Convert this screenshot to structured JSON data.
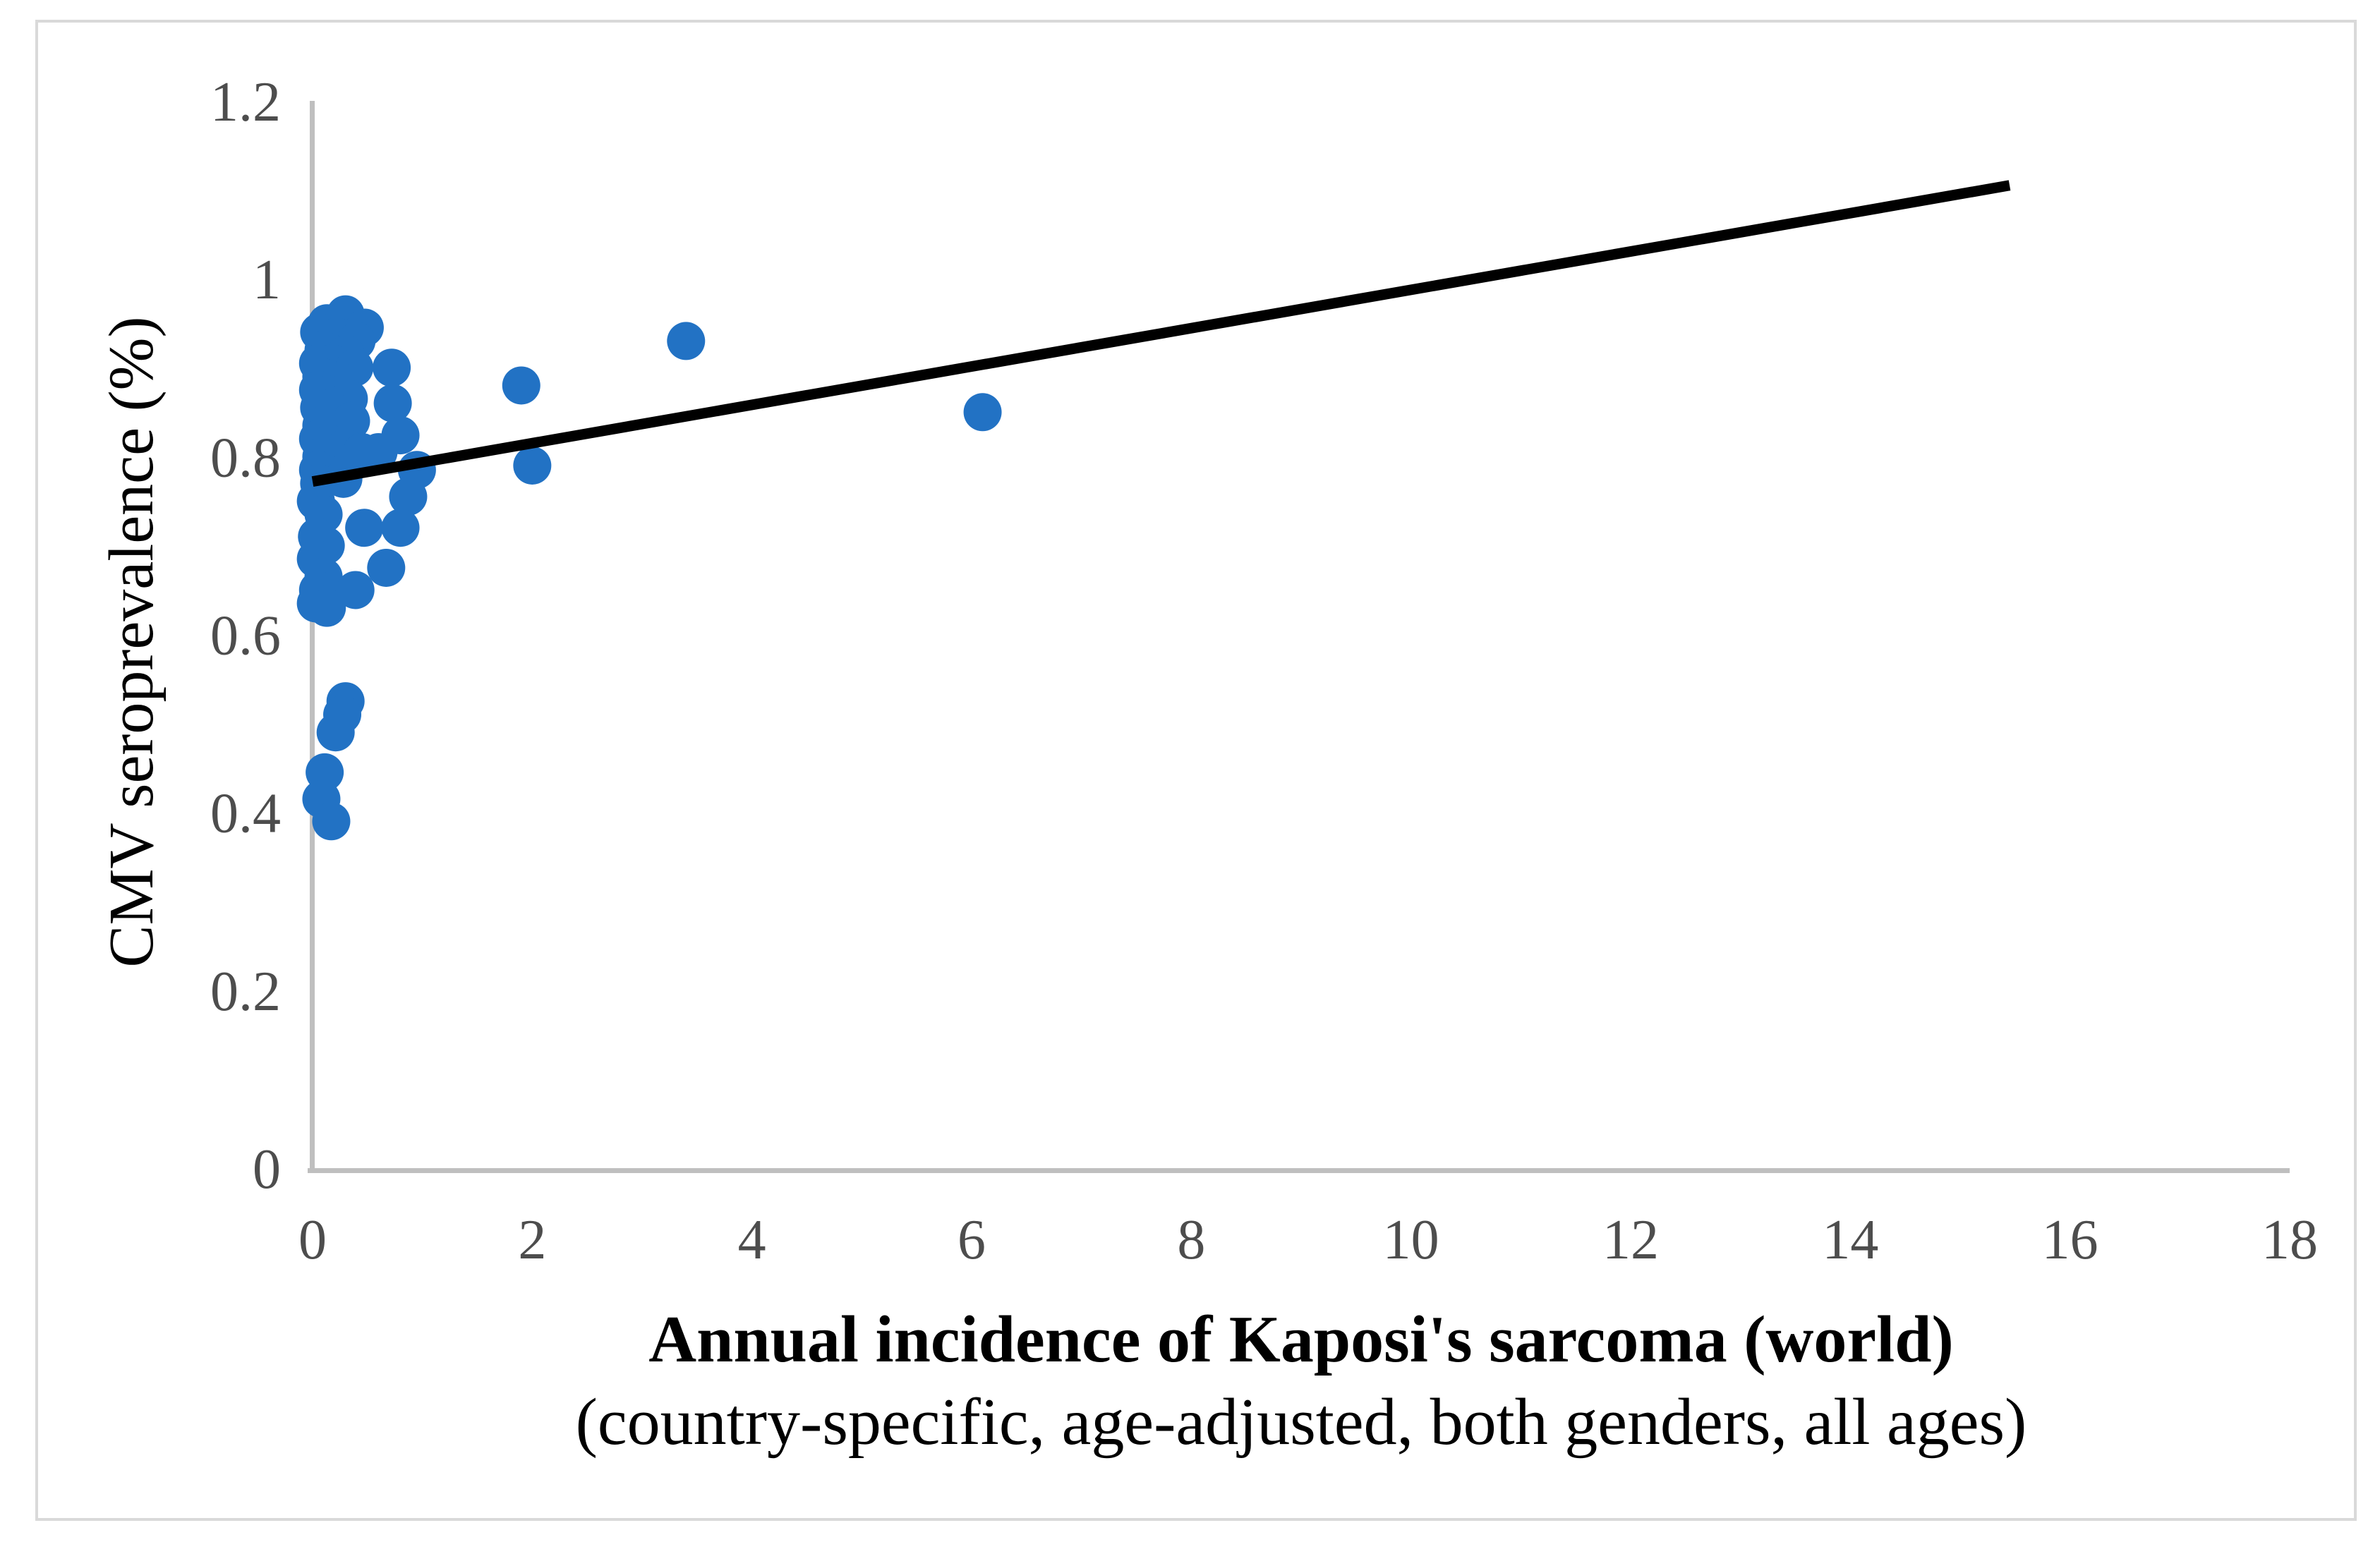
{
  "chart_data": {
    "type": "scatter",
    "title": "",
    "xlabel_line1": "Annual incidence of Kaposi's sarcoma (world)",
    "xlabel_line2": "(country-specific, age-adjusted, both genders, all ages)",
    "ylabel": "CMV seroprevalence (%)",
    "xlim": [
      0,
      18
    ],
    "ylim": [
      0,
      1.2
    ],
    "x_ticks": {
      "values": [
        0,
        2,
        4,
        6,
        8,
        10,
        12,
        14,
        16,
        18
      ],
      "labels": [
        "0",
        "2",
        "4",
        "6",
        "8",
        "10",
        "12",
        "14",
        "16",
        "18"
      ]
    },
    "y_ticks": {
      "values": [
        0,
        0.2,
        0.4,
        0.6,
        0.8,
        1,
        1.2
      ],
      "labels": [
        "0",
        "0.2",
        "0.4",
        "0.6",
        "0.8",
        "1",
        "1.2"
      ]
    },
    "grid": false,
    "legend": null,
    "points": [
      [
        0.3,
        0.96
      ],
      [
        0.13,
        0.95
      ],
      [
        0.475,
        0.945
      ],
      [
        0.06,
        0.94
      ],
      [
        0.22,
        0.935
      ],
      [
        0.4,
        0.93
      ],
      [
        0.1,
        0.92
      ],
      [
        0.3,
        0.915
      ],
      [
        0.05,
        0.905
      ],
      [
        0.18,
        0.905
      ],
      [
        0.38,
        0.9
      ],
      [
        0.72,
        0.9
      ],
      [
        0.08,
        0.89
      ],
      [
        0.25,
        0.885
      ],
      [
        0.05,
        0.875
      ],
      [
        0.15,
        0.87
      ],
      [
        0.33,
        0.865
      ],
      [
        0.73,
        0.86
      ],
      [
        0.06,
        0.855
      ],
      [
        0.2,
        0.85
      ],
      [
        0.35,
        0.84
      ],
      [
        0.08,
        0.835
      ],
      [
        0.22,
        0.83
      ],
      [
        0.8,
        0.824
      ],
      [
        0.05,
        0.82
      ],
      [
        0.15,
        0.815
      ],
      [
        0.3,
        0.81
      ],
      [
        0.6,
        0.805
      ],
      [
        0.45,
        0.805
      ],
      [
        0.08,
        0.8
      ],
      [
        0.2,
        0.795
      ],
      [
        0.05,
        0.785
      ],
      [
        0.13,
        0.78
      ],
      [
        0.28,
        0.775
      ],
      [
        0.06,
        0.77
      ],
      [
        0.95,
        0.785
      ],
      [
        0.87,
        0.755
      ],
      [
        1.9,
        0.88
      ],
      [
        2.0,
        0.79
      ],
      [
        0.03,
        0.75
      ],
      [
        0.1,
        0.735
      ],
      [
        0.47,
        0.72
      ],
      [
        0.8,
        0.72
      ],
      [
        0.04,
        0.71
      ],
      [
        0.12,
        0.7
      ],
      [
        0.03,
        0.685
      ],
      [
        0.67,
        0.675
      ],
      [
        0.1,
        0.665
      ],
      [
        0.39,
        0.65
      ],
      [
        0.05,
        0.65
      ],
      [
        0.03,
        0.635
      ],
      [
        0.13,
        0.63
      ],
      [
        0.3,
        0.525
      ],
      [
        0.27,
        0.51
      ],
      [
        0.21,
        0.49
      ],
      [
        0.11,
        0.445
      ],
      [
        0.08,
        0.415
      ],
      [
        0.17,
        0.39
      ],
      [
        3.4,
        0.93
      ],
      [
        6.1,
        0.85
      ]
    ],
    "trendline": {
      "x1": 0,
      "y1": 0.772,
      "x2": 15.45,
      "y2": 1.105
    },
    "colors": {
      "point": "#2272C4",
      "trendline": "#000000",
      "axis": "#BFBFBF",
      "tick_label": "#4D4D4D",
      "title_text": "#000000",
      "frame": "#D9D9D9",
      "background": "#FFFFFF"
    }
  }
}
